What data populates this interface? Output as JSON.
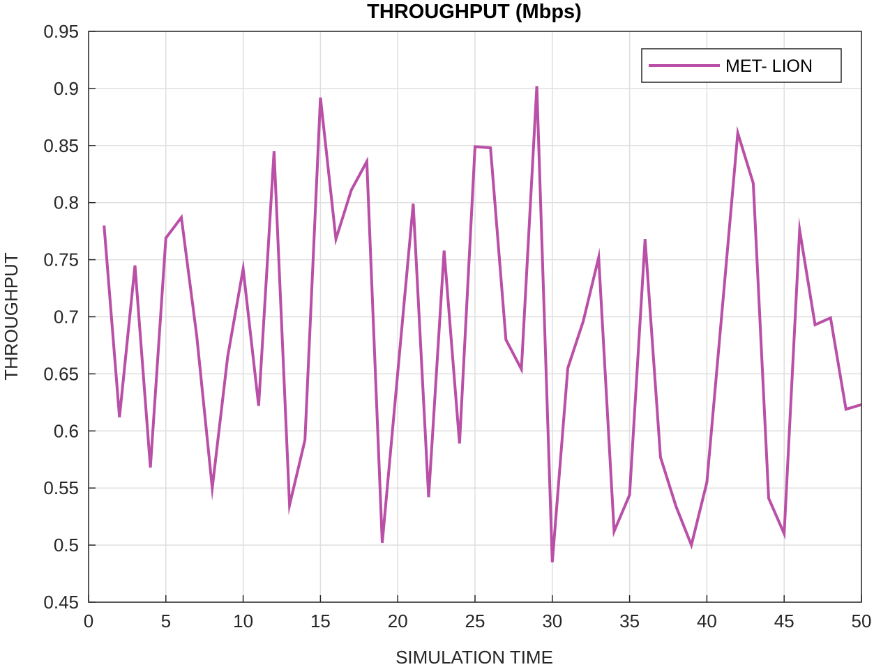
{
  "chart_data": {
    "type": "line",
    "title": "THROUGHPUT (Mbps)",
    "xlabel": "SIMULATION TIME",
    "ylabel": "THROUGHPUT",
    "xlim": [
      0,
      50
    ],
    "ylim": [
      0.45,
      0.95
    ],
    "xticks": [
      0,
      5,
      10,
      15,
      20,
      25,
      30,
      35,
      40,
      45,
      50
    ],
    "yticks": [
      0.45,
      0.5,
      0.55,
      0.6,
      0.65,
      0.7,
      0.75,
      0.8,
      0.85,
      0.9,
      0.95
    ],
    "xtick_labels": [
      "0",
      "5",
      "10",
      "15",
      "20",
      "25",
      "30",
      "35",
      "40",
      "45",
      "50"
    ],
    "ytick_labels": [
      "0.45",
      "0.5",
      "0.55",
      "0.6",
      "0.65",
      "0.7",
      "0.75",
      "0.8",
      "0.85",
      "0.9",
      "0.95"
    ],
    "grid": true,
    "legend_position": "top-right",
    "series": [
      {
        "name": "MET- LION",
        "color": "#b94fa6",
        "x": [
          1,
          2,
          3,
          4,
          5,
          6,
          7,
          8,
          9,
          10,
          11,
          12,
          13,
          14,
          15,
          16,
          17,
          18,
          19,
          20,
          21,
          22,
          23,
          24,
          25,
          26,
          27,
          28,
          29,
          30,
          31,
          32,
          33,
          34,
          35,
          36,
          37,
          38,
          39,
          40,
          41,
          42,
          43,
          44,
          45,
          46,
          47,
          48,
          49,
          50
        ],
        "y": [
          0.78,
          0.612,
          0.745,
          0.568,
          0.769,
          0.787,
          0.683,
          0.55,
          0.665,
          0.742,
          0.622,
          0.845,
          0.535,
          0.592,
          0.892,
          0.768,
          0.811,
          0.836,
          0.502,
          0.651,
          0.799,
          0.542,
          0.758,
          0.589,
          0.849,
          0.848,
          0.68,
          0.654,
          0.902,
          0.485,
          0.655,
          0.696,
          0.752,
          0.512,
          0.544,
          0.768,
          0.577,
          0.534,
          0.5,
          0.555,
          0.708,
          0.861,
          0.817,
          0.541,
          0.51,
          0.776,
          0.693,
          0.699,
          0.619,
          0.623
        ]
      }
    ]
  }
}
